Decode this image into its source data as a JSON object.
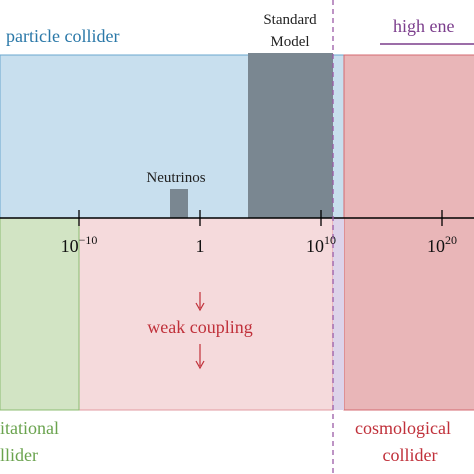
{
  "labels": {
    "particle_collider": "particle collider",
    "standard_model": [
      "Standard",
      "Model"
    ],
    "high_energy": "high ene",
    "neutrinos": "Neutrinos",
    "weak_coupling": "weak coupling",
    "gravitational_collider": [
      "itational",
      "llider"
    ],
    "cosmological_collider": [
      "cosmological",
      "collider"
    ]
  },
  "axis": {
    "ticks": [
      {
        "base": "10",
        "exp": "−10"
      },
      {
        "base": "1",
        "exp": ""
      },
      {
        "base": "10",
        "exp": "10"
      },
      {
        "base": "10",
        "exp": "20"
      }
    ]
  }
}
